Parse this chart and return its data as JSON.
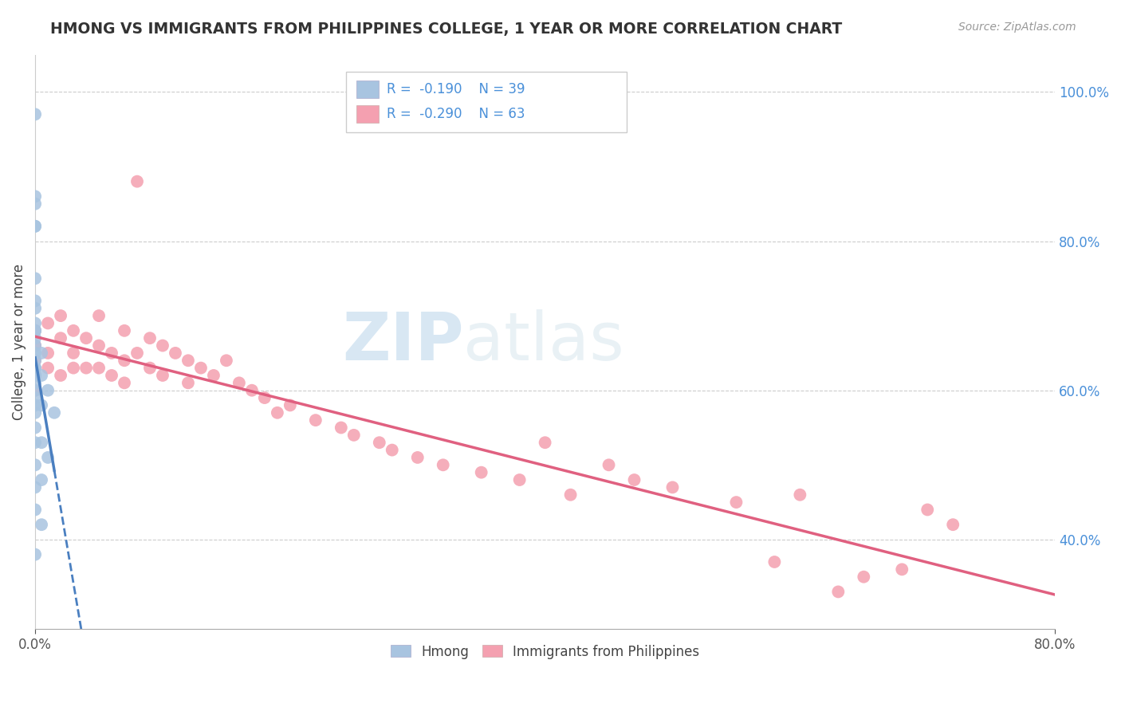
{
  "title": "HMONG VS IMMIGRANTS FROM PHILIPPINES COLLEGE, 1 YEAR OR MORE CORRELATION CHART",
  "source": "Source: ZipAtlas.com",
  "ylabel": "College, 1 year or more",
  "xlim": [
    0.0,
    0.8
  ],
  "ylim": [
    0.28,
    1.05
  ],
  "yticks_right": [
    0.4,
    0.6,
    0.8,
    1.0
  ],
  "ytick_right_labels": [
    "40.0%",
    "60.0%",
    "80.0%",
    "100.0%"
  ],
  "hmong_color": "#a8c4e0",
  "phil_color": "#f4a0b0",
  "hmong_line_color": "#4a7fc0",
  "phil_line_color": "#e06080",
  "watermark_color": "#c8dff0",
  "hmong_x": [
    0.0,
    0.0,
    0.0,
    0.0,
    0.0,
    0.0,
    0.0,
    0.0,
    0.0,
    0.0,
    0.0,
    0.0,
    0.0,
    0.0,
    0.0,
    0.0,
    0.0,
    0.0,
    0.0,
    0.0,
    0.0,
    0.0,
    0.0,
    0.0,
    0.0,
    0.0,
    0.0,
    0.0,
    0.0,
    0.0,
    0.005,
    0.005,
    0.005,
    0.005,
    0.005,
    0.005,
    0.01,
    0.01,
    0.015
  ],
  "hmong_y": [
    0.97,
    0.86,
    0.85,
    0.82,
    0.82,
    0.75,
    0.72,
    0.71,
    0.69,
    0.68,
    0.68,
    0.67,
    0.66,
    0.65,
    0.64,
    0.63,
    0.63,
    0.62,
    0.62,
    0.61,
    0.6,
    0.59,
    0.58,
    0.57,
    0.55,
    0.53,
    0.5,
    0.47,
    0.44,
    0.38,
    0.65,
    0.62,
    0.58,
    0.53,
    0.48,
    0.42,
    0.6,
    0.51,
    0.57
  ],
  "phil_x": [
    0.0,
    0.0,
    0.0,
    0.0,
    0.0,
    0.01,
    0.01,
    0.01,
    0.02,
    0.02,
    0.02,
    0.03,
    0.03,
    0.03,
    0.04,
    0.04,
    0.05,
    0.05,
    0.05,
    0.06,
    0.06,
    0.07,
    0.07,
    0.07,
    0.08,
    0.08,
    0.09,
    0.09,
    0.1,
    0.1,
    0.11,
    0.12,
    0.12,
    0.13,
    0.14,
    0.15,
    0.16,
    0.17,
    0.18,
    0.19,
    0.2,
    0.22,
    0.24,
    0.25,
    0.27,
    0.28,
    0.3,
    0.32,
    0.35,
    0.38,
    0.4,
    0.42,
    0.45,
    0.47,
    0.5,
    0.55,
    0.58,
    0.6,
    0.63,
    0.65,
    0.68,
    0.7,
    0.72
  ],
  "phil_y": [
    0.68,
    0.66,
    0.64,
    0.62,
    0.6,
    0.69,
    0.65,
    0.63,
    0.7,
    0.67,
    0.62,
    0.68,
    0.65,
    0.63,
    0.67,
    0.63,
    0.7,
    0.66,
    0.63,
    0.65,
    0.62,
    0.68,
    0.64,
    0.61,
    0.88,
    0.65,
    0.67,
    0.63,
    0.66,
    0.62,
    0.65,
    0.64,
    0.61,
    0.63,
    0.62,
    0.64,
    0.61,
    0.6,
    0.59,
    0.57,
    0.58,
    0.56,
    0.55,
    0.54,
    0.53,
    0.52,
    0.51,
    0.5,
    0.49,
    0.48,
    0.53,
    0.46,
    0.5,
    0.48,
    0.47,
    0.45,
    0.37,
    0.46,
    0.33,
    0.35,
    0.36,
    0.44,
    0.42
  ]
}
